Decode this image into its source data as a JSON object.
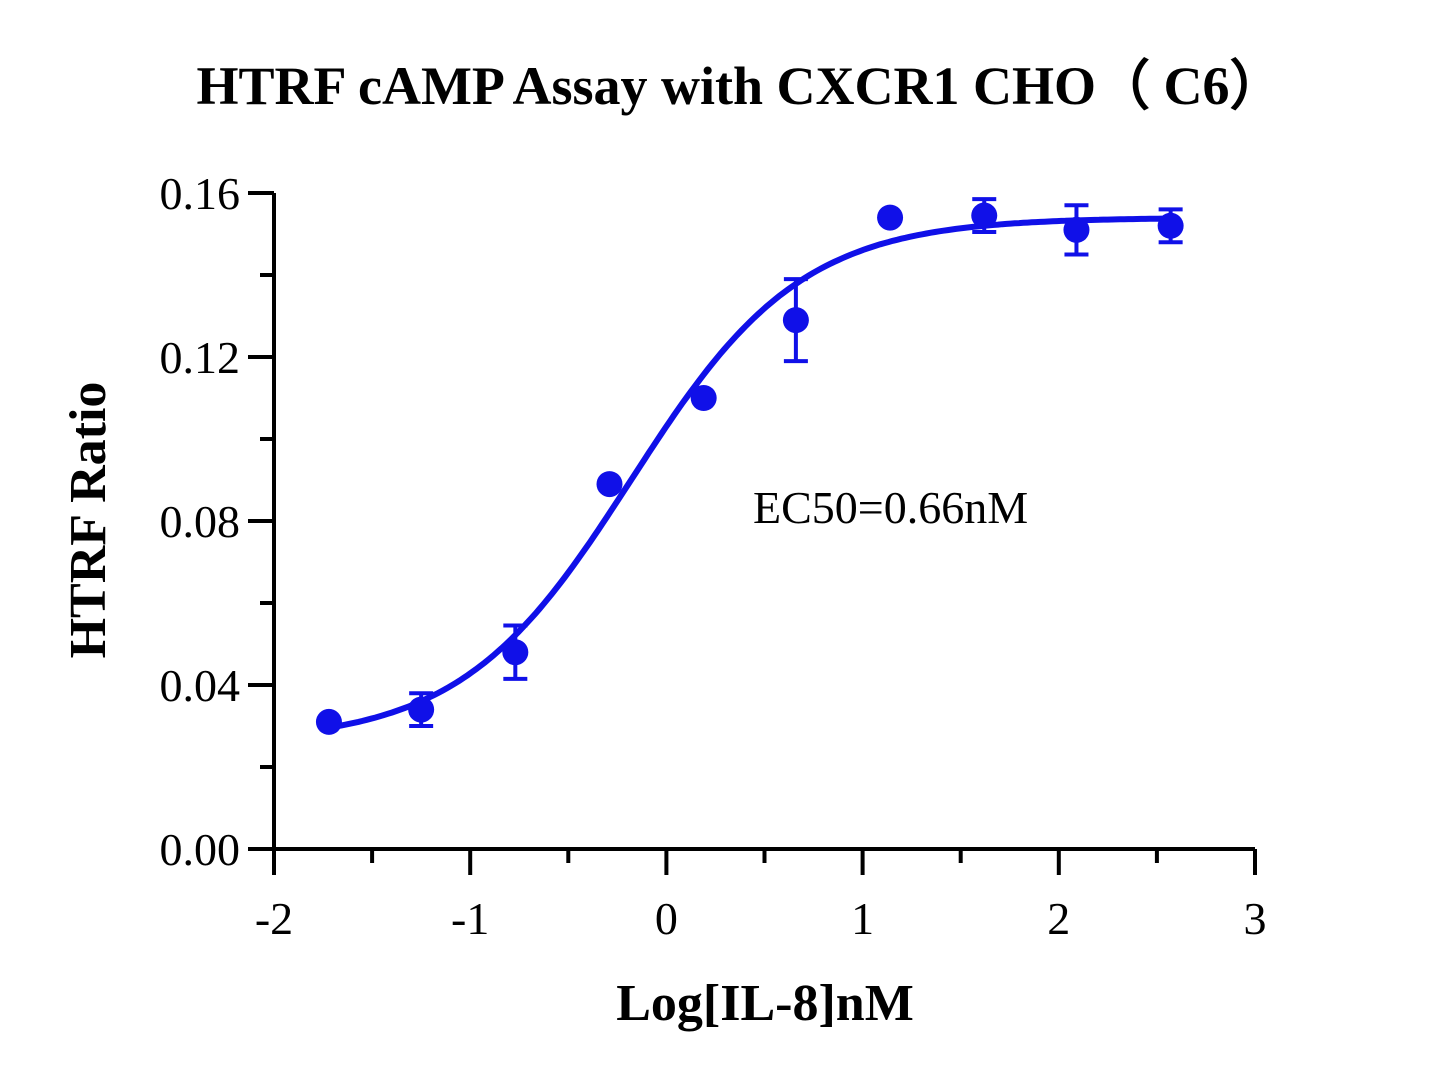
{
  "chart_data": {
    "type": "scatter",
    "title": "HTRF cAMP Assay with CXCR1 CHO（ C6）",
    "xlabel": "Log[IL-8]nM",
    "ylabel": "HTRF Ratio",
    "xlim": [
      -2,
      3
    ],
    "ylim": [
      0,
      0.16
    ],
    "xticks": [
      "-2",
      "-1",
      "0",
      "1",
      "2",
      "3"
    ],
    "yticks": [
      "0.00",
      "0.04",
      "0.08",
      "0.12",
      "0.16"
    ],
    "grid": false,
    "color": "#1010e8",
    "annotation": "EC50=0.66nM",
    "points": [
      {
        "x": -1.72,
        "y": 0.031,
        "err": 0.0
      },
      {
        "x": -1.25,
        "y": 0.034,
        "err": 0.004
      },
      {
        "x": -0.77,
        "y": 0.048,
        "err": 0.0065
      },
      {
        "x": -0.29,
        "y": 0.089,
        "err": 0.0
      },
      {
        "x": 0.19,
        "y": 0.11,
        "err": 0.0
      },
      {
        "x": 0.66,
        "y": 0.129,
        "err": 0.01
      },
      {
        "x": 1.14,
        "y": 0.154,
        "err": 0.0
      },
      {
        "x": 1.62,
        "y": 0.1545,
        "err": 0.004
      },
      {
        "x": 2.09,
        "y": 0.151,
        "err": 0.006
      },
      {
        "x": 2.57,
        "y": 0.152,
        "err": 0.004
      }
    ],
    "fit": {
      "model": "sigmoidal dose-response",
      "bottom": 0.026,
      "top": 0.154,
      "logEC50": -0.18,
      "hill": 1.0
    }
  }
}
